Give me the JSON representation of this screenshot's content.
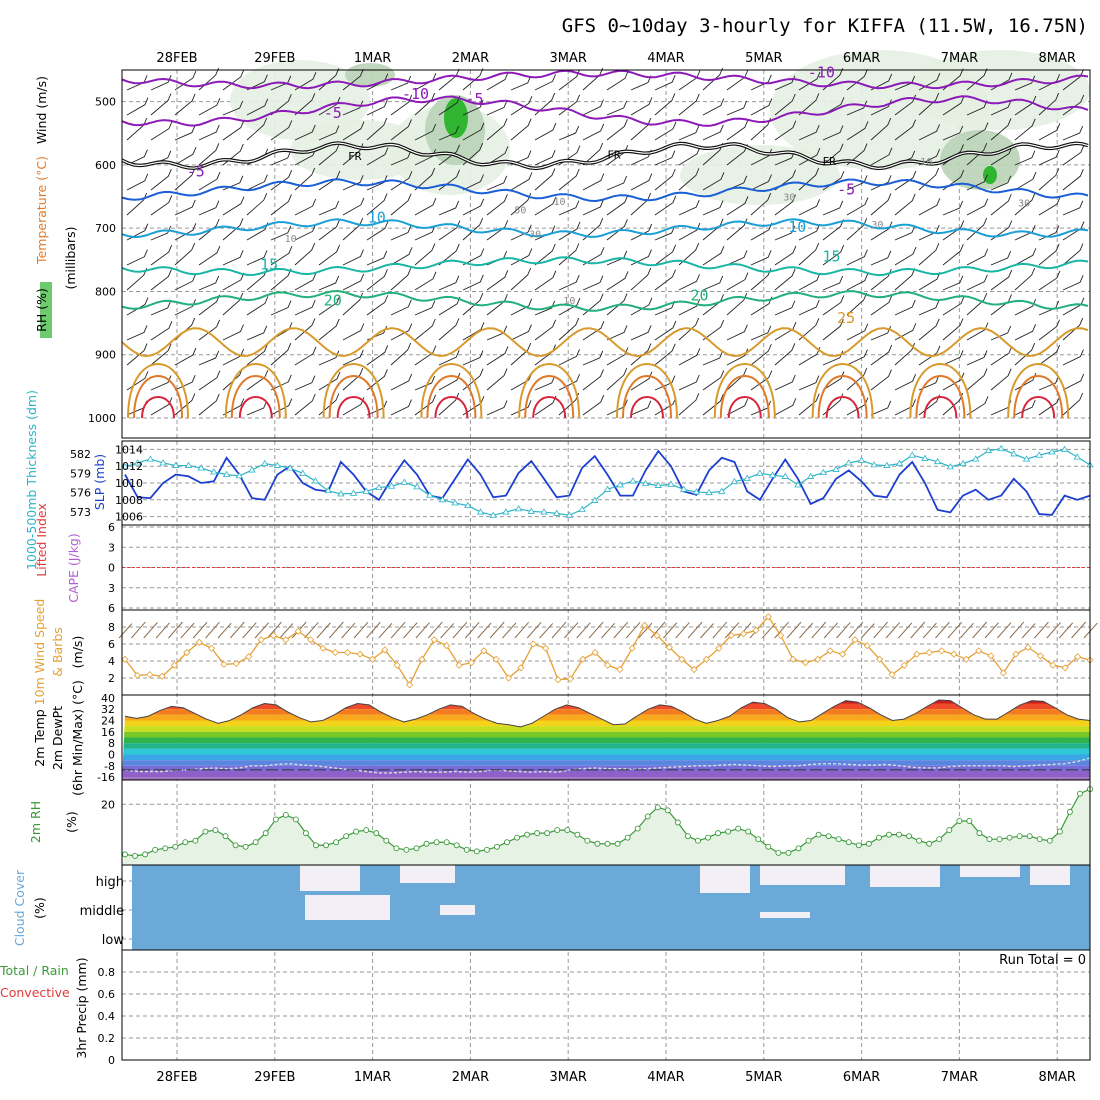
{
  "title": "GFS 0~10day 3-hourly for KIFFA (11.5W, 16.75N)",
  "colors": {
    "frame": "#000000",
    "grid": "#9a9a9a",
    "temp_cold": "#8c1ab8",
    "temp_cool": "#1a5fd6",
    "temp_mild": "#1a9fd6",
    "temp_warm": "#19b6a6",
    "temp_warm2": "#22b07a",
    "temp_hot": "#d89a2b",
    "temp_hotter": "#e07a2a",
    "temp_hottest": "#d8243a",
    "rh_light": "#e4efe2",
    "rh_mid": "#b9d3b6",
    "rh_high": "#2fb52f",
    "slp": "#1c3fcf",
    "thickness": "#2bb4c8",
    "lifted_index": "#e03a3a",
    "cape": "#b15fd1",
    "wind10m": "#e5a034",
    "barb": "#8a6a48",
    "rh2m": "#3a9a3a",
    "rh2m_fill": "#e6f2e4",
    "cloud": "#6aa9d8",
    "cloud_gap": "#f2f0f6",
    "precip_total": "#3a9a3a",
    "precip_conv": "#e03a3a"
  },
  "chart_data": [
    {
      "type": "contour",
      "panel": "upper_air",
      "ylabel_parts": [
        "RH (%)",
        "Temperature (°C)",
        "Wind (m/s)",
        "(millibars)"
      ],
      "x": [
        "28FEB",
        "29FEB",
        "1MAR",
        "2MAR",
        "3MAR",
        "4MAR",
        "5MAR",
        "6MAR",
        "7MAR",
        "8MAR"
      ],
      "yticks": [
        500,
        600,
        700,
        800,
        900,
        1000
      ],
      "ylim": [
        450,
        1000
      ],
      "y_reversed": true,
      "isotherm_labels": [
        {
          "value": "-10",
          "x_day": 2.3,
          "p": 496
        },
        {
          "value": "-10",
          "x_day": 6.45,
          "p": 462
        },
        {
          "value": "-5",
          "x_day": 1.5,
          "p": 526
        },
        {
          "value": "-5",
          "x_day": 2.95,
          "p": 504
        },
        {
          "value": "-5",
          "x_day": 0.1,
          "p": 618
        },
        {
          "value": "-5",
          "x_day": 6.75,
          "p": 647
        },
        {
          "value": "10",
          "x_day": 1.95,
          "p": 691
        },
        {
          "value": "10",
          "x_day": 6.25,
          "p": 706
        },
        {
          "value": "15",
          "x_day": 0.85,
          "p": 765
        },
        {
          "value": "15",
          "x_day": 6.6,
          "p": 753
        },
        {
          "value": "20",
          "x_day": 1.5,
          "p": 822
        },
        {
          "value": "20",
          "x_day": 5.25,
          "p": 814
        },
        {
          "value": "25",
          "x_day": 6.75,
          "p": 850
        }
      ],
      "freezing_labels": [
        {
          "value": "FR",
          "x_day": 1.75,
          "p": 592
        },
        {
          "value": "FR",
          "x_day": 4.4,
          "p": 590
        },
        {
          "value": "FR",
          "x_day": 6.6,
          "p": 600
        }
      ],
      "rh_labels": [
        {
          "value": "50",
          "x_day": 3.45,
          "p": 677
        },
        {
          "value": "30",
          "x_day": 3.6,
          "p": 715
        },
        {
          "value": "10",
          "x_day": 3.85,
          "p": 663
        },
        {
          "value": "10",
          "x_day": 3.95,
          "p": 820
        },
        {
          "value": "30",
          "x_day": 6.2,
          "p": 656
        },
        {
          "value": "10",
          "x_day": 1.1,
          "p": 722
        },
        {
          "value": "10",
          "x_day": 7.6,
          "p": 600
        },
        {
          "value": "30",
          "x_day": 8.6,
          "p": 666
        },
        {
          "value": "30",
          "x_day": 7.1,
          "p": 700
        }
      ]
    },
    {
      "type": "line",
      "panel": "slp_thickness",
      "ylabel_left": "1000-500mb Thickness (dm)",
      "ylabel_right": "SLP (mb)",
      "yticks_left": [
        573,
        576,
        579,
        582
      ],
      "yticks_right": [
        1006,
        1008,
        1010,
        1012,
        1014
      ],
      "ylim_slp": [
        1005,
        1014
      ],
      "series": [
        {
          "name": "SLP (mb)",
          "color_key": "slp",
          "values": [
            1011,
            1008.3,
            1008.2,
            1010,
            1011,
            1010.8,
            1010,
            1010.2,
            1013,
            1011,
            1008.2,
            1008,
            1011,
            1012,
            1010,
            1009.2,
            1009,
            1012.5,
            1011,
            1009,
            1008,
            1010.5,
            1012.7,
            1011,
            1008.5,
            1008.2,
            1010.5,
            1012.8,
            1011,
            1008.3,
            1008.5,
            1011.2,
            1012.6,
            1010.5,
            1008.3,
            1008.5,
            1011.8,
            1013.2,
            1011,
            1008.5,
            1008.5,
            1011.5,
            1013.8,
            1012,
            1009,
            1008.6,
            1011.5,
            1013,
            1012.5,
            1009,
            1008,
            1010.5,
            1012.8,
            1010.5,
            1007.5,
            1008.2,
            1010.5,
            1011.5,
            1010.2,
            1008.5,
            1008.3,
            1011,
            1012.5,
            1010,
            1006.8,
            1006.5,
            1008.5,
            1009.2,
            1008,
            1008.5,
            1010.5,
            1009,
            1006.3,
            1006.2,
            1008.5,
            1008,
            1008.5
          ]
        },
        {
          "name": "Thickness (dm)",
          "color_key": "thickness",
          "values": [
            580,
            580.6,
            581.2,
            580.6,
            580.2,
            580.2,
            579.8,
            579.2,
            578.8,
            578.6,
            579.5,
            580.5,
            580.2,
            579.8,
            579,
            577.8,
            576.3,
            575.8,
            575.9,
            576.2,
            576.8,
            577,
            577.6,
            576.9,
            575.6,
            574.9,
            574.4,
            574,
            573,
            572.5,
            573,
            573.5,
            573.1,
            573,
            572.8,
            572.5,
            573.4,
            574.8,
            576.5,
            577.2,
            577.8,
            577.4,
            577.1,
            577.3,
            576.5,
            576.1,
            576,
            576.2,
            577.7,
            578.2,
            579,
            578.7,
            578.5,
            577.2,
            578.5,
            579.1,
            579.6,
            580.6,
            581,
            580.3,
            580.2,
            580.5,
            581.8,
            581.3,
            580.8,
            580,
            580.5,
            581.2,
            582.5,
            582.8,
            582,
            581.2,
            581.8,
            582.3,
            582.7,
            581.5,
            580.3
          ]
        }
      ]
    },
    {
      "type": "line",
      "panel": "stability",
      "ylabel_left": "Lifted Index",
      "ylabel_right": "CAPE (J/kg)",
      "yticks": [
        6,
        3,
        0,
        -3,
        -6
      ],
      "ytick_labels": [
        "6",
        "3",
        "0",
        "3",
        "6"
      ],
      "ylim": [
        -6,
        6
      ],
      "series": [
        {
          "name": "Lifted Index",
          "color_key": "lifted_index",
          "style": "dashed",
          "values": [
            0
          ]
        }
      ]
    },
    {
      "type": "line",
      "panel": "wind10m",
      "ylabel_parts": [
        "10m Wind Speed",
        "& Barbs",
        "(m/s)"
      ],
      "yticks": [
        2,
        4,
        6,
        8
      ],
      "ylim": [
        0,
        10
      ],
      "series": [
        {
          "name": "10m Wind Speed",
          "color_key": "wind10m",
          "values": [
            4.2,
            2.3,
            2.4,
            2.2,
            3.5,
            5,
            6.2,
            5.5,
            3.6,
            3.7,
            4.5,
            6.5,
            7,
            6.5,
            7.5,
            6.5,
            5.5,
            5,
            5,
            4.8,
            4.2,
            5.3,
            3.5,
            1.2,
            4.2,
            6.5,
            5.8,
            3.5,
            3.8,
            5.2,
            4.2,
            2,
            3.2,
            6,
            5.5,
            1.8,
            1.9,
            4.2,
            5,
            3.5,
            3,
            5.5,
            8.2,
            7,
            5.6,
            4.2,
            3,
            4.2,
            5.5,
            7,
            7.2,
            7.6,
            9.2,
            7,
            4.2,
            3.8,
            4.2,
            5.2,
            4.8,
            6.5,
            5.8,
            4.2,
            2.4,
            3.5,
            4.8,
            5,
            5.2,
            4.8,
            4.2,
            5.2,
            4.6,
            2.6,
            4.8,
            5.6,
            4.6,
            3.5,
            3.2,
            4.5,
            4.1
          ]
        }
      ]
    },
    {
      "type": "area",
      "panel": "temp2m",
      "ylabel_parts": [
        "2m Temp",
        "2m DewPt",
        "(6hr Min/Max) (°C)"
      ],
      "yticks": [
        40,
        32,
        24,
        16,
        8,
        0,
        -8,
        -16
      ],
      "ylim": [
        -18,
        42
      ],
      "series": [
        {
          "name": "2m Temp",
          "values": [
            27,
            25.5,
            27,
            31,
            34,
            33,
            29,
            25,
            22,
            24,
            28,
            33,
            36,
            35,
            30,
            26,
            23,
            24,
            28,
            33,
            36,
            35,
            30,
            26,
            23,
            25,
            28,
            32,
            35,
            34,
            29,
            25,
            22,
            21,
            19.5,
            22,
            27,
            32,
            35,
            33,
            29,
            25,
            21,
            21.5,
            27,
            32,
            35,
            34,
            30,
            25,
            22,
            24,
            27,
            33,
            37,
            36,
            32,
            26,
            23,
            24,
            29,
            34,
            38,
            37,
            33,
            28,
            24,
            25,
            29,
            34,
            38.5,
            38,
            33,
            28,
            25,
            25,
            30,
            35,
            38,
            37.5,
            33,
            28,
            25,
            24
          ]
        },
        {
          "name": "2m DewPt",
          "values": [
            -11,
            -12,
            -12,
            -12,
            -11,
            -11,
            -10,
            -9.5,
            -10,
            -9.5,
            -8,
            -8,
            -7,
            -6.5,
            -7.5,
            -8,
            -9,
            -10,
            -11,
            -12,
            -13,
            -13,
            -12.5,
            -12,
            -12.5,
            -12.5,
            -12,
            -12.5,
            -12,
            -11,
            -11.5,
            -12,
            -12.5,
            -12,
            -12.5,
            -11,
            -10,
            -9.5,
            -10,
            -10,
            -10.5,
            -10,
            -9.5,
            -9,
            -8.5,
            -8,
            -8,
            -7.5,
            -7,
            -7.5,
            -8,
            -8.5,
            -8,
            -8,
            -7,
            -6.5,
            -6.5,
            -7,
            -7.5,
            -7.5,
            -7,
            -8,
            -9,
            -9.5,
            -9.5,
            -8.5,
            -8,
            -8,
            -8,
            -8,
            -8.5,
            -8,
            -7.5,
            -7,
            -6.5,
            -5,
            -2.5
          ]
        }
      ]
    },
    {
      "type": "area",
      "panel": "rh2m",
      "ylabel_parts": [
        "2m RH",
        "(%)"
      ],
      "yticks": [
        20
      ],
      "ylim": [
        0,
        28
      ],
      "series": [
        {
          "name": "2m RH",
          "color_key": "rh2m",
          "values": [
            3.5,
            3,
            3.5,
            5,
            5.5,
            6,
            7.5,
            8,
            11,
            11.5,
            9.5,
            6.5,
            6,
            7.5,
            10.5,
            15,
            16.5,
            15,
            10.5,
            6.5,
            6.5,
            7.5,
            9.5,
            11,
            11.5,
            10.5,
            8,
            5.5,
            5,
            5.5,
            7,
            7.5,
            7.5,
            6.5,
            5,
            4.5,
            5,
            6,
            7.5,
            9,
            10,
            10.5,
            10.5,
            11.5,
            11.5,
            10,
            8,
            7,
            7,
            7,
            9,
            12,
            16,
            19,
            18,
            14,
            9.5,
            8,
            9,
            10.5,
            11,
            12,
            11,
            8.5,
            6,
            4,
            4,
            5.5,
            8,
            10,
            9.5,
            8.5,
            7.5,
            6.5,
            7,
            9,
            10,
            10,
            9.5,
            8,
            7,
            8.5,
            11.5,
            14.5,
            14.5,
            10.5,
            8.5,
            8.5,
            9,
            9.5,
            9.5,
            8.5,
            8,
            11,
            17.5,
            23.5,
            25
          ]
        }
      ]
    },
    {
      "type": "bar",
      "panel": "cloud",
      "ylabel_parts": [
        "Cloud Cover",
        "(%)"
      ],
      "ycategories": [
        "high",
        "middle",
        "low"
      ]
    },
    {
      "type": "bar",
      "panel": "precip",
      "ylabel_parts": [
        "Total / Rain",
        "Convective",
        "3hr Precip (mm)"
      ],
      "yticks": [
        0,
        0.2,
        0.4,
        0.6,
        0.8
      ],
      "ylim": [
        0,
        1
      ],
      "annotation": "Run Total = 0",
      "values": []
    }
  ]
}
